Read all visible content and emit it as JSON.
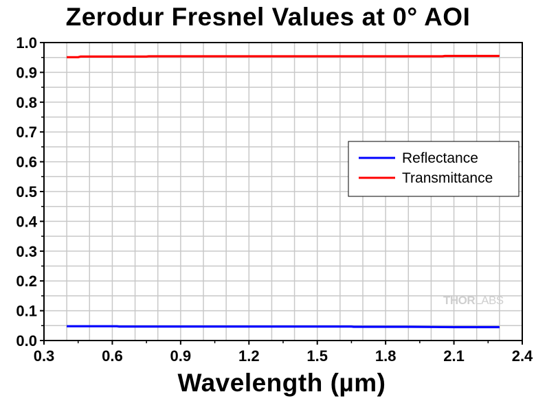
{
  "chart_data": {
    "type": "line",
    "title": "Zerodur Fresnel Values at 0° AOI",
    "xlabel": "Wavelength (µm)",
    "ylabel": "",
    "xlim": [
      0.3,
      2.4
    ],
    "ylim": [
      0.0,
      1.0
    ],
    "xticks": [
      "0.3",
      "0.6",
      "0.9",
      "1.2",
      "1.5",
      "1.8",
      "2.1",
      "2.4"
    ],
    "yticks": [
      "0.0",
      "0.1",
      "0.2",
      "0.3",
      "0.4",
      "0.5",
      "0.6",
      "0.7",
      "0.8",
      "0.9",
      "1.0"
    ],
    "grid": true,
    "legend_position": "right",
    "series": [
      {
        "name": "Reflectance",
        "color": "#0000ff",
        "x": [
          0.4,
          0.5,
          0.62,
          0.63,
          0.9,
          1.2,
          1.5,
          1.65,
          1.66,
          1.9,
          2.1,
          2.3
        ],
        "y": [
          0.048,
          0.048,
          0.048,
          0.047,
          0.047,
          0.047,
          0.047,
          0.047,
          0.046,
          0.046,
          0.045,
          0.045
        ]
      },
      {
        "name": "Transmittance",
        "color": "#ff0000",
        "x": [
          0.4,
          0.45,
          0.46,
          0.75,
          0.76,
          1.2,
          1.65,
          2.05,
          2.06,
          2.3
        ],
        "y": [
          0.951,
          0.951,
          0.953,
          0.953,
          0.954,
          0.954,
          0.954,
          0.954,
          0.955,
          0.955
        ]
      }
    ],
    "watermark": {
      "part1": "THOR",
      "part2": "LABS"
    }
  }
}
